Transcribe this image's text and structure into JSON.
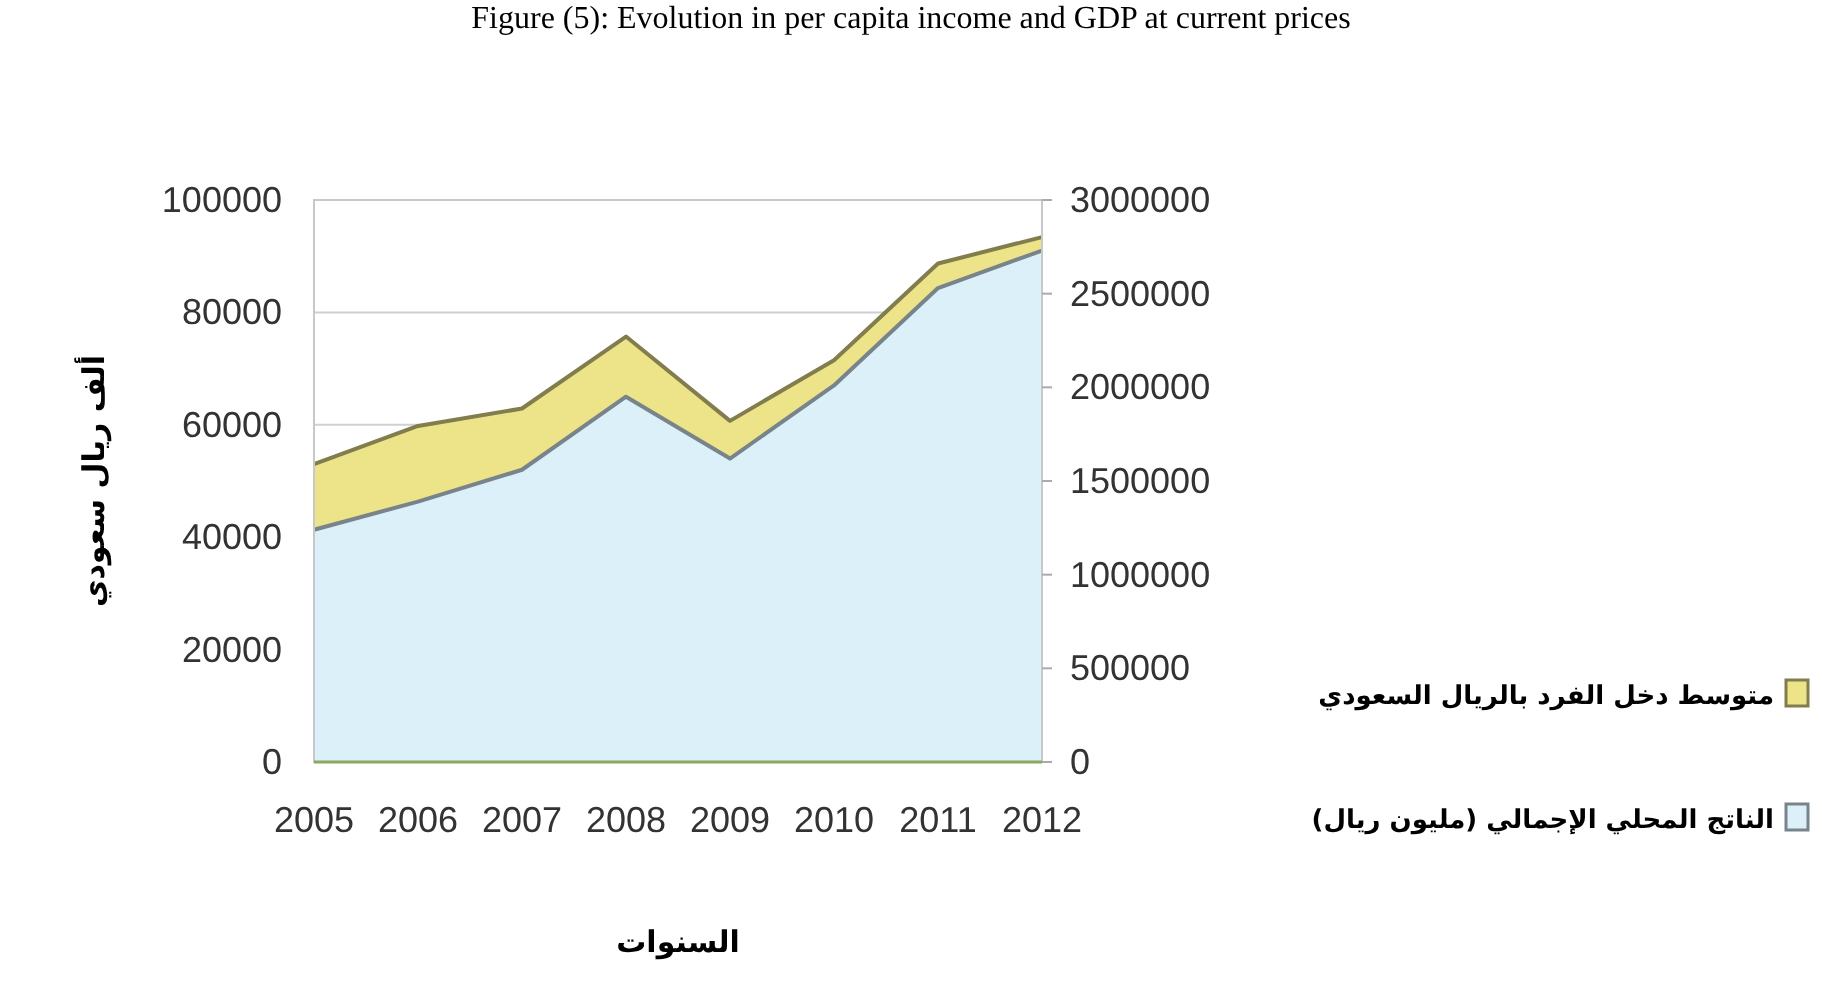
{
  "chart_data": {
    "type": "area",
    "title": "Figure (5): Evolution in per capita income and GDP at current prices",
    "xlabel": "السنوات",
    "ylabel": "ألف ريال سعودي",
    "categories": [
      "2005",
      "2006",
      "2007",
      "2008",
      "2009",
      "2010",
      "2011",
      "2012"
    ],
    "series": [
      {
        "name": "متوسط دخل الفرد بالريال السعودي",
        "color": "#ede48a",
        "values": [
          53000,
          59800,
          62900,
          75700,
          60700,
          71500,
          88700,
          93400
        ]
      },
      {
        "name": "الناتج المحلي الإجمالي (مليون ريال)",
        "color": "#dcf0fa",
        "axis": "y2",
        "values": [
          1240000,
          1390000,
          1560000,
          1950000,
          1620000,
          2010000,
          2530000,
          2730000
        ]
      }
    ],
    "ylim": [
      0,
      100000
    ],
    "yticks": [
      0,
      20000,
      40000,
      60000,
      80000,
      100000
    ],
    "y2lim": [
      0,
      3000000
    ],
    "y2ticks": [
      0,
      500000,
      1000000,
      1500000,
      2000000,
      2500000,
      3000000
    ],
    "grid": "y",
    "legend": "right"
  }
}
